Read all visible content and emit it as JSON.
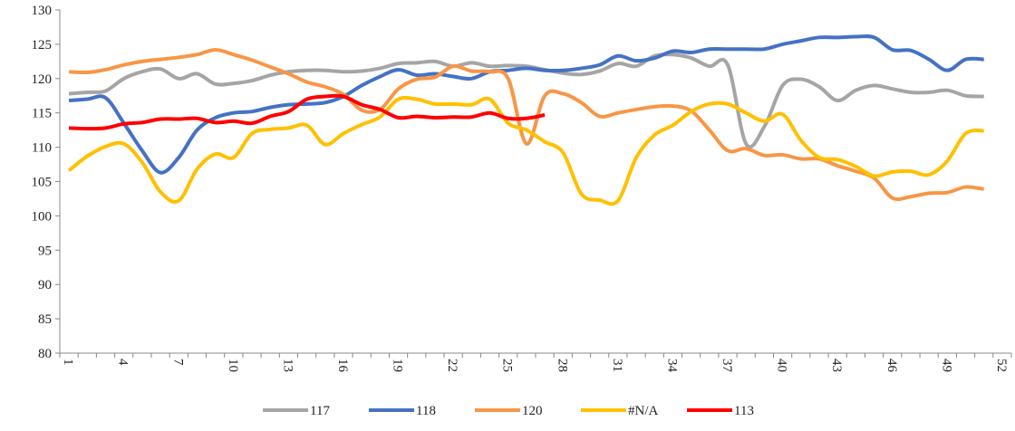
{
  "chart_data": {
    "type": "line",
    "categories": [
      1,
      null,
      null,
      4,
      null,
      null,
      7,
      null,
      null,
      10,
      null,
      null,
      13,
      null,
      null,
      16,
      null,
      null,
      19,
      null,
      null,
      22,
      null,
      null,
      25,
      null,
      null,
      28,
      null,
      null,
      31,
      null,
      null,
      34,
      null,
      null,
      37,
      null,
      null,
      40,
      null,
      null,
      43,
      null,
      null,
      46,
      null,
      null,
      49,
      null,
      null,
      52
    ],
    "ylim": [
      80,
      130
    ],
    "yticks": [
      80,
      85,
      90,
      95,
      100,
      105,
      110,
      115,
      120,
      125,
      130
    ],
    "series": [
      {
        "name": "117",
        "color": "#a5a5a5",
        "values": [
          117.8,
          118,
          118.2,
          120,
          121,
          121.4,
          120,
          120.7,
          119.2,
          119.3,
          119.7,
          120.5,
          121,
          121.2,
          121.2,
          121,
          121.1,
          121.5,
          122.2,
          122.3,
          122.5,
          121.8,
          122.3,
          121.8,
          121.9,
          121.8,
          121.3,
          120.8,
          120.6,
          121.1,
          122.2,
          121.8,
          123.3,
          123.5,
          123,
          121.8,
          122,
          110.5,
          113,
          119,
          119.9,
          118.8,
          116.8,
          118.3,
          119,
          118.5,
          118,
          118,
          118.3,
          117.5,
          117.4,
          null
        ]
      },
      {
        "name": "118",
        "color": "#4472c4",
        "values": [
          116.8,
          117,
          117.2,
          113.5,
          109.5,
          106.3,
          108.5,
          112.5,
          114.3,
          115,
          115.2,
          115.8,
          116.2,
          116.3,
          116.5,
          117.4,
          119,
          120.3,
          121.3,
          120.5,
          120.7,
          120.3,
          120,
          121,
          121.2,
          121.5,
          121.2,
          121.2,
          121.5,
          122,
          123.3,
          122.6,
          123,
          124,
          123.8,
          124.3,
          124.3,
          124.3,
          124.3,
          125,
          125.5,
          126,
          126,
          126.1,
          126,
          124.2,
          124.1,
          122.8,
          121.2,
          122.8,
          122.8,
          null
        ]
      },
      {
        "name": "120",
        "color": "#f79646",
        "values": [
          121,
          120.9,
          121.3,
          122,
          122.5,
          122.8,
          123.1,
          123.5,
          124.2,
          123.5,
          122.7,
          121.7,
          120.7,
          119.5,
          118.8,
          117.7,
          115.4,
          115.5,
          118.5,
          119.9,
          120.2,
          121.8,
          121.1,
          121,
          120,
          110.5,
          117.5,
          117.8,
          116.5,
          114.5,
          115,
          115.5,
          115.9,
          116,
          115.3,
          112.5,
          109.5,
          109.8,
          108.8,
          108.9,
          108.3,
          108.3,
          107.3,
          106.5,
          105.5,
          102.6,
          102.8,
          103.3,
          103.4,
          104.2,
          103.9,
          null
        ]
      },
      {
        "name": "#N/A",
        "color": "#ffc000",
        "values": [
          106.6,
          108.7,
          110.1,
          110.5,
          107.8,
          103.5,
          102.2,
          106.8,
          109,
          108.5,
          112,
          112.6,
          112.8,
          113.2,
          110.4,
          112,
          113.3,
          114.4,
          117,
          117,
          116.3,
          116.3,
          116.2,
          117,
          113.5,
          112.5,
          110.8,
          109.2,
          103.2,
          102.3,
          102.2,
          108.5,
          111.8,
          113.2,
          115.2,
          116.3,
          116.3,
          115,
          113.8,
          114.8,
          111,
          108.5,
          108.2,
          107.2,
          105.8,
          106.4,
          106.5,
          106,
          108,
          112,
          112.4,
          null
        ]
      },
      {
        "name": "113",
        "color": "#ff0000",
        "values": [
          112.8,
          112.7,
          112.8,
          113.4,
          113.6,
          114.1,
          114.1,
          114.2,
          113.6,
          113.8,
          113.5,
          114.5,
          115.2,
          117,
          117.4,
          117.4,
          116.2,
          115.5,
          114.3,
          114.5,
          114.3,
          114.4,
          114.4,
          115,
          114.2,
          114.2,
          114.7,
          null,
          null,
          null,
          null,
          null,
          null,
          null,
          null,
          null,
          null,
          null,
          null,
          null,
          null,
          null,
          null,
          null,
          null,
          null,
          null,
          null,
          null,
          null,
          null,
          null
        ]
      }
    ]
  }
}
